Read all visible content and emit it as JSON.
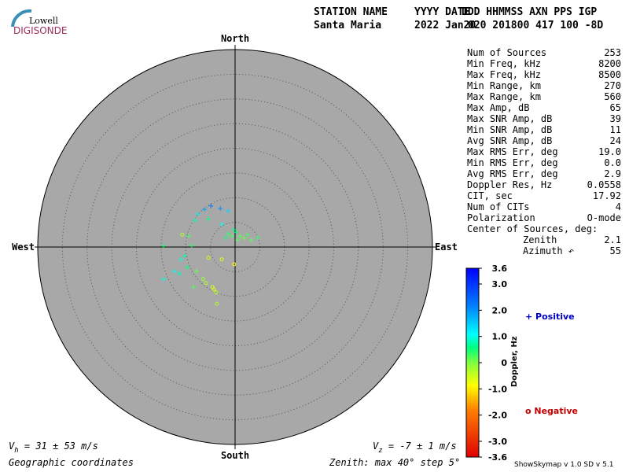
{
  "header": {
    "logo_top": "Lowell",
    "logo_bottom": "DIGISONDE",
    "labels": [
      "STATION NAME",
      "YYYY DATE",
      "DDD HHMMSS AXN PPS IGP"
    ],
    "values": [
      "Santa Maria",
      "2022 Jan20",
      "020 201800 417 100 -8D"
    ]
  },
  "stats": {
    "rows": [
      [
        "Num of Sources",
        "253"
      ],
      [
        "Min Freq, kHz",
        "8200"
      ],
      [
        "Max Freq, kHz",
        "8500"
      ],
      [
        "Min Range, km",
        "270"
      ],
      [
        "Max Range, km",
        "560"
      ],
      [
        "Max Amp, dB",
        "65"
      ],
      [
        "Max SNR Amp, dB",
        "39"
      ],
      [
        "Min SNR Amp, dB",
        "11"
      ],
      [
        "Avg SNR Amp, dB",
        "24"
      ],
      [
        "Max RMS Err, deg",
        "19.0"
      ],
      [
        "Min RMS Err, deg",
        "0.0"
      ],
      [
        "Avg RMS Err, deg",
        "2.9"
      ],
      [
        "Doppler Res, Hz",
        "0.0558"
      ],
      [
        "CIT, sec",
        "17.92"
      ],
      [
        "Num of CITs",
        "4"
      ],
      [
        "Polarization",
        "O-mode"
      ]
    ],
    "center_title": "Center of Sources, deg:",
    "center_rows": [
      [
        "Zenith",
        "2.1"
      ],
      [
        "Azimuth ↶",
        "55"
      ]
    ]
  },
  "chart_data": {
    "type": "polar-scatter",
    "rlim": [
      0,
      40
    ],
    "rticks": [
      5,
      10,
      15,
      20,
      25,
      30,
      35
    ],
    "directions": {
      "north": "North",
      "south": "South",
      "east": "East",
      "west": "West"
    },
    "east": [
      0.2,
      -0.6,
      -1.4,
      1.0,
      -0.2,
      1.8,
      0.5,
      -1.8,
      2.5,
      3.3,
      4.6,
      -2.7,
      -1.4,
      -3.0,
      -4.9,
      -6.2,
      -7.5,
      -8.1,
      -5.4,
      -9.4,
      -8.8,
      -10.2,
      -11.0,
      -9.7,
      -11.3,
      -12.3,
      -14.5,
      -7.8,
      -6.5,
      -5.9,
      -4.6,
      -3.8,
      -3.7,
      -8.4,
      -10.7,
      -14.5,
      -0.2,
      -2.7,
      -5.4,
      -4.3
    ],
    "north": [
      3.0,
      2.2,
      2.7,
      2.2,
      3.5,
      1.8,
      1.4,
      1.9,
      2.5,
      1.4,
      1.9,
      4.6,
      7.3,
      7.8,
      8.3,
      7.6,
      6.7,
      5.4,
      5.7,
      2.2,
      0.3,
      -1.8,
      -2.5,
      -4.1,
      -5.4,
      -4.9,
      -6.5,
      -4.9,
      -6.5,
      -7.3,
      -8.1,
      -9.2,
      -11.5,
      -8.1,
      2.5,
      0.2,
      -3.5,
      -2.5,
      -2.2,
      -8.6
    ],
    "doppler": [
      0.5,
      0.3,
      0.4,
      0.2,
      0.6,
      0.1,
      0.2,
      0.5,
      0.3,
      0.2,
      0.4,
      1.0,
      1.4,
      2.0,
      2.2,
      1.8,
      1.2,
      0.8,
      0.6,
      0.3,
      0.4,
      0.7,
      0.9,
      0.6,
      0.8,
      1.0,
      0.9,
      0.1,
      -0.2,
      -0.3,
      -0.5,
      -0.4,
      -0.3,
      0.2,
      -0.3,
      0.5,
      -0.9,
      -0.6,
      -0.5,
      -0.7
    ],
    "colorbar": {
      "label": "Doppler, Hz",
      "lim": [
        -3.6,
        3.6
      ],
      "ticks": [
        {
          "value": 3.6,
          "label": "3.6"
        },
        {
          "value": 3.0,
          "label": "3.0"
        },
        {
          "value": 2.0,
          "label": "2.0"
        },
        {
          "value": 1.0,
          "label": "1.0"
        },
        0,
        {
          "value": -1.0,
          "label": "-1.0"
        },
        {
          "value": -2.0,
          "label": "-2.0"
        },
        {
          "value": -3.0,
          "label": "-3.0"
        },
        {
          "value": -3.6,
          "label": "-3.6"
        }
      ]
    },
    "legend": {
      "positive": "+ Positive",
      "negative": "o Negative"
    }
  },
  "footer": {
    "vh_symbol": "V",
    "vh_sub": "h",
    "vh_text": " = 31 ± 53 m/s",
    "vz_symbol": "V",
    "vz_sub": "z",
    "vz_text": " = -7 ± 1 m/s",
    "coords": "Geographic coordinates",
    "zenith": "Zenith: max 40°  step 5°",
    "version": "ShowSkymap v 1.0   SD v 5.1"
  }
}
